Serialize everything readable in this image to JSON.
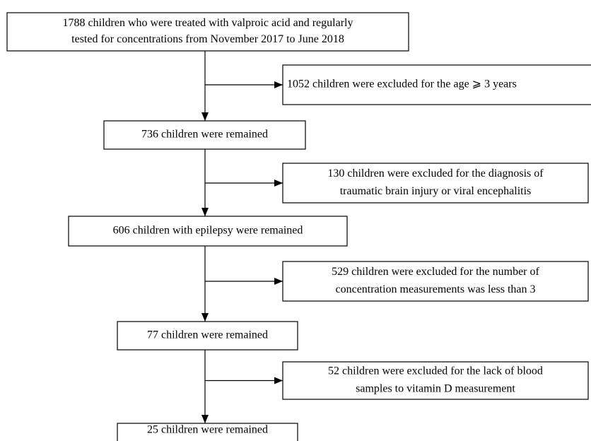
{
  "nodes": [
    {
      "lines": [
        "1788 children who were treated with valproic acid and regularly",
        "tested for concentrations from November 2017 to June 2018"
      ]
    },
    {
      "lines": [
        "736 children were remained"
      ]
    },
    {
      "lines": [
        "606 children with epilepsy were remained"
      ]
    },
    {
      "lines": [
        "77 children were remained"
      ]
    },
    {
      "lines": [
        "25 children were remained"
      ]
    }
  ],
  "exclusions": [
    {
      "lines": [
        "1052 children were excluded for the age ⩾ 3 years"
      ]
    },
    {
      "lines": [
        "130 children were excluded for the diagnosis of",
        "traumatic brain injury or viral encephalitis"
      ]
    },
    {
      "lines": [
        "529 children were excluded for the number of",
        "concentration measurements was less than 3"
      ]
    },
    {
      "lines": [
        "52 children were excluded for the lack of blood",
        "samples to vitamin D measurement"
      ]
    }
  ]
}
